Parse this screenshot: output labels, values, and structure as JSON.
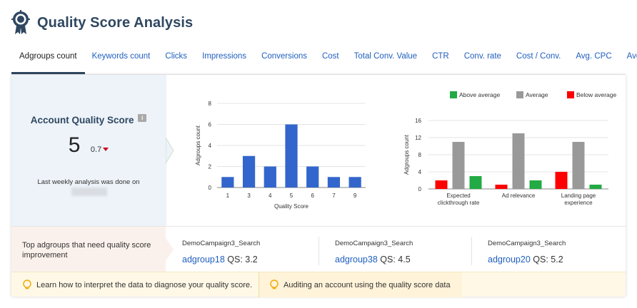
{
  "header": {
    "title": "Quality Score Analysis",
    "logo_icon": "award-badge-icon"
  },
  "tabs": [
    {
      "label": "Adgroups count",
      "active": true
    },
    {
      "label": "Keywords count"
    },
    {
      "label": "Clicks"
    },
    {
      "label": "Impressions"
    },
    {
      "label": "Conversions"
    },
    {
      "label": "Cost"
    },
    {
      "label": "Total Conv. Value"
    },
    {
      "label": "CTR"
    },
    {
      "label": "Conv. rate"
    },
    {
      "label": "Cost / Conv."
    },
    {
      "label": "Avg. CPC"
    },
    {
      "label": "Avg. Pos"
    }
  ],
  "account_quality": {
    "title": "Account Quality Score",
    "info_badge": "i",
    "score": "5",
    "delta": "0.7",
    "delta_direction": "down",
    "note": "Last weekly analysis was done on"
  },
  "chart_data": [
    {
      "type": "bar",
      "categories": [
        "1",
        "3",
        "4",
        "5",
        "6",
        "7",
        "9"
      ],
      "values": [
        1,
        3,
        2,
        6,
        2,
        1,
        1
      ],
      "xlabel": "Quality Score",
      "ylabel": "Adgroups count",
      "ylim": [
        0,
        8
      ],
      "yticks": [
        "0",
        "2",
        "4",
        "6",
        "8"
      ],
      "color": "#3366cc",
      "grid": true
    },
    {
      "type": "bar",
      "categories": [
        "Expected clickthrough rate",
        "Ad relevance",
        "Landing page experience"
      ],
      "category_lines": [
        [
          "Expected",
          "clickthrough rate"
        ],
        [
          "Ad relevance"
        ],
        [
          "Landing page",
          "experience"
        ]
      ],
      "series": [
        {
          "name": "Below average",
          "values": [
            2,
            1,
            4
          ],
          "color": "#ff0000"
        },
        {
          "name": "Average",
          "values": [
            11,
            13,
            11
          ],
          "color": "#999999"
        },
        {
          "name": "Above average",
          "values": [
            3,
            2,
            1
          ],
          "color": "#22aa44"
        }
      ],
      "legend_order": [
        "Above average",
        "Average",
        "Below average"
      ],
      "legend_position": "top-right",
      "ylabel": "Adgroups count",
      "ylim": [
        0,
        16
      ],
      "yticks": [
        "0",
        "4",
        "8",
        "12",
        "16"
      ],
      "grid": true
    }
  ],
  "improvement": {
    "label": "Top adgroups that need quality score improvement",
    "items": [
      {
        "campaign": "DemoCampaign3_Search",
        "adgroup": "adgroup18",
        "qs_label": "QS:",
        "qs": "3.2"
      },
      {
        "campaign": "DemoCampaign3_Search",
        "adgroup": "adgroup38",
        "qs_label": "QS:",
        "qs": "4.5"
      },
      {
        "campaign": "DemoCampaign3_Search",
        "adgroup": "adgroup20",
        "qs_label": "QS:",
        "qs": "5.2"
      }
    ]
  },
  "tips": [
    {
      "icon": "lightbulb-icon",
      "text": "Learn how to interpret the data to diagnose your quality score."
    },
    {
      "icon": "lightbulb-icon",
      "text": "Auditing an account using the quality score data"
    }
  ]
}
